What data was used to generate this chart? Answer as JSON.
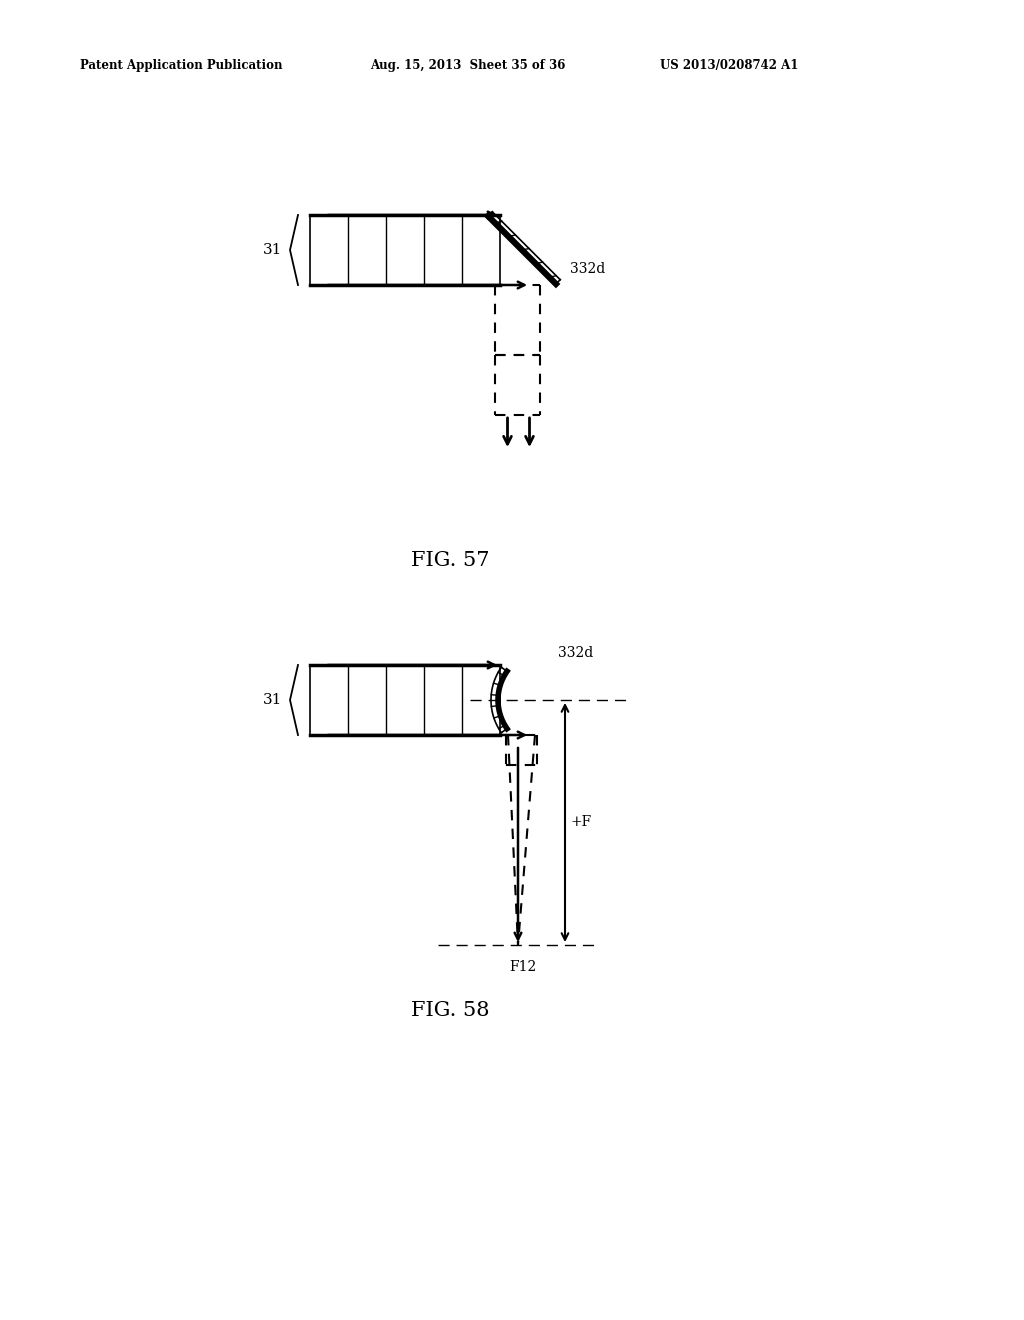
{
  "bg_color": "#ffffff",
  "header_left": "Patent Application Publication",
  "header_mid": "Aug. 15, 2013  Sheet 35 of 36",
  "header_right": "US 2013/0208742 A1",
  "fig57_label": "FIG. 57",
  "fig58_label": "FIG. 58",
  "label_31": "31",
  "label_332d": "332d",
  "label_F": "+F",
  "label_F12": "F12"
}
